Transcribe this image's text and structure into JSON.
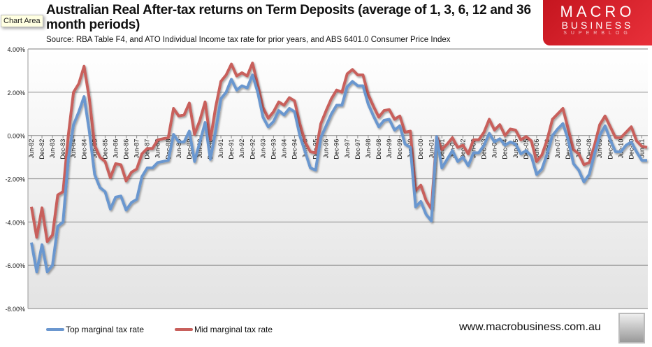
{
  "tooltip": "Chart Area",
  "logo": {
    "line1": "MACRO",
    "line2": "BUSINESS",
    "line3": "SUPERBLOG"
  },
  "website": "www.macrobusiness.com.au",
  "colors": {
    "top": "#6b97cf",
    "mid": "#c8605c"
  },
  "chart_data": {
    "type": "line",
    "title": "Australian Real After-tax returns on Term Deposits (average of 1, 3, 6, 12 and 36 month periods)",
    "subtitle": "Source: RBA Table F4, and ATO Individual Income tax rate for prior years, and ABS 6401.0 Consumer Price Index",
    "xlabel": "",
    "ylabel": "",
    "ylim": [
      -8,
      4
    ],
    "yticks": [
      "4.00%",
      "2.00%",
      "0.00%",
      "-2.00%",
      "-4.00%",
      "-6.00%",
      "-8.00%"
    ],
    "xtick_labels": [
      "Jun-82",
      "Dec-82",
      "Jun-83",
      "Dec-83",
      "Jun-84",
      "Dec-84",
      "Jun-85",
      "Dec-85",
      "Jun-86",
      "Dec-86",
      "Jun-87",
      "Dec-87",
      "Jun-88",
      "Dec-88",
      "Jun-89",
      "Dec-89",
      "Jun-90",
      "Dec-90",
      "Jun-91",
      "Dec-91",
      "Jun-92",
      "Dec-92",
      "Jun-93",
      "Dec-93",
      "Jun-94",
      "Dec-94",
      "Jun-95",
      "Dec-95",
      "Jun-96",
      "Dec-96",
      "Jun-97",
      "Dec-97",
      "Jun-98",
      "Dec-98",
      "Jun-99",
      "Dec-99",
      "Jun-00",
      "Dec-00",
      "Jun-01",
      "Dec-01",
      "Jun-02",
      "Dec-02",
      "Jun-03",
      "Dec-03",
      "Jun-04",
      "Dec-04",
      "Jun-05",
      "Dec-05",
      "Jun-06",
      "Dec-06",
      "Jun-07",
      "Dec-07",
      "Jun-08",
      "Dec-08",
      "Jun-09",
      "Dec-09",
      "Jun-10",
      "Dec-10",
      "Jun-11"
    ],
    "grid": true,
    "legend": "bottom-left",
    "x_frequency": "quarterly from Jun-82 to Sep-11",
    "series": [
      {
        "name": "Top marginal tax rate",
        "values": [
          -4.95,
          -6.3,
          -5.05,
          -6.3,
          -6.0,
          -4.2,
          -4.0,
          -1.1,
          0.5,
          1.1,
          1.8,
          0.2,
          -1.8,
          -2.4,
          -2.6,
          -3.4,
          -2.85,
          -2.8,
          -3.45,
          -3.1,
          -2.95,
          -1.9,
          -1.5,
          -1.5,
          -1.25,
          -1.2,
          -1.15,
          0.05,
          -0.3,
          -0.3,
          0.2,
          -1.2,
          -0.3,
          0.6,
          -1.1,
          0.2,
          1.7,
          2.0,
          2.6,
          2.1,
          2.3,
          2.2,
          2.8,
          2.0,
          0.85,
          0.4,
          0.65,
          1.15,
          0.95,
          1.25,
          1.1,
          0.0,
          -0.75,
          -1.5,
          -1.6,
          -0.1,
          0.45,
          1.0,
          1.4,
          1.4,
          2.25,
          2.5,
          2.3,
          2.3,
          1.45,
          0.9,
          0.4,
          0.7,
          0.75,
          0.25,
          0.45,
          -0.4,
          -0.55,
          -3.3,
          -3.05,
          -3.65,
          -3.95,
          -0.05,
          -1.5,
          -1.1,
          -0.7,
          -1.2,
          -1.0,
          -1.4,
          -0.8,
          -0.8,
          -0.45,
          0.1,
          -0.3,
          -0.15,
          -0.45,
          -0.3,
          -0.4,
          -0.85,
          -0.7,
          -0.95,
          -1.8,
          -1.55,
          -0.85,
          0.0,
          0.3,
          0.55,
          -0.2,
          -1.3,
          -1.6,
          -2.15,
          -1.8,
          -0.85,
          0.0,
          0.45,
          -0.2,
          -0.75,
          -0.75,
          -0.45,
          -0.3,
          -0.75,
          -1.15,
          -1.15
        ]
      },
      {
        "name": "Mid marginal tax rate",
        "values": [
          -3.3,
          -4.7,
          -3.35,
          -4.9,
          -4.6,
          -2.75,
          -2.6,
          0.0,
          2.0,
          2.4,
          3.2,
          1.7,
          -0.45,
          -1.0,
          -1.2,
          -1.95,
          -1.3,
          -1.35,
          -2.1,
          -1.7,
          -1.55,
          -0.85,
          -0.6,
          -0.6,
          -0.2,
          -0.15,
          -0.1,
          1.25,
          0.9,
          0.95,
          1.5,
          0.05,
          0.7,
          1.55,
          -0.2,
          1.3,
          2.5,
          2.8,
          3.3,
          2.75,
          2.9,
          2.75,
          3.35,
          2.35,
          1.3,
          0.8,
          1.1,
          1.55,
          1.4,
          1.75,
          1.6,
          0.55,
          -0.3,
          -0.75,
          -0.8,
          0.55,
          1.15,
          1.7,
          2.1,
          2.0,
          2.85,
          3.05,
          2.8,
          2.8,
          1.9,
          1.35,
          0.85,
          1.15,
          1.2,
          0.75,
          0.9,
          0.15,
          0.2,
          -2.55,
          -2.3,
          -3.0,
          -3.4,
          -0.05,
          -0.65,
          -0.4,
          -0.1,
          -0.55,
          -0.45,
          -0.85,
          -0.2,
          -0.2,
          0.15,
          0.75,
          0.25,
          0.5,
          0.0,
          0.3,
          0.25,
          -0.2,
          -0.05,
          -0.25,
          -1.2,
          -0.9,
          -0.2,
          0.75,
          1.0,
          1.25,
          0.3,
          -0.65,
          -0.85,
          -1.35,
          -1.25,
          -0.45,
          0.5,
          0.9,
          0.4,
          -0.1,
          -0.1,
          0.15,
          0.4,
          -0.25,
          -0.5,
          -0.55
        ]
      }
    ]
  }
}
